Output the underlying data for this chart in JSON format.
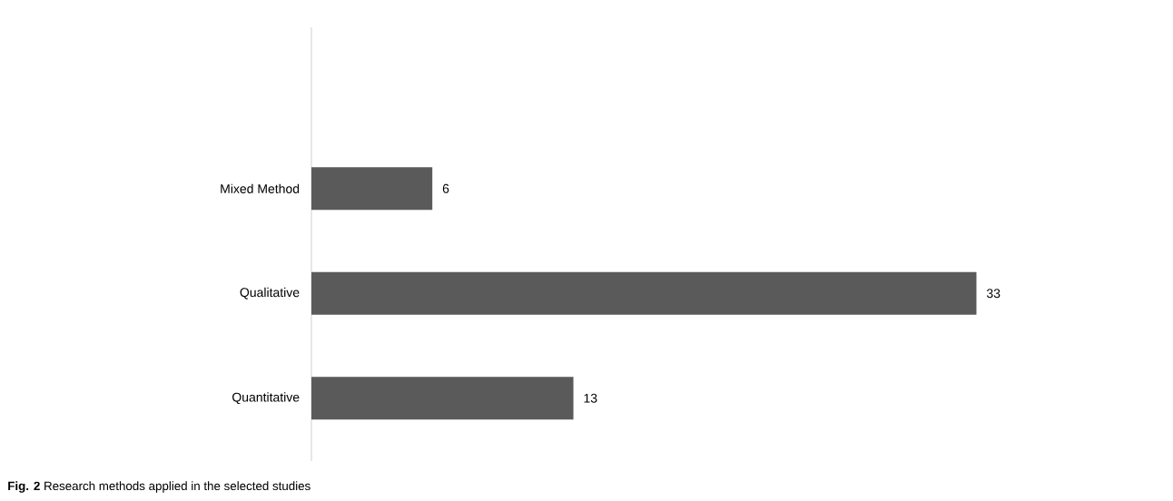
{
  "chart_data": {
    "type": "bar",
    "orientation": "horizontal",
    "categories": [
      "Mixed Method",
      "Qualitative",
      "Quantitative"
    ],
    "values": [
      6,
      33,
      13
    ],
    "color": "#5a5a5a",
    "data_labels": true,
    "annotations": [
      "**Fig. 2** Research methods applied in the selected studies"
    ]
  }
}
